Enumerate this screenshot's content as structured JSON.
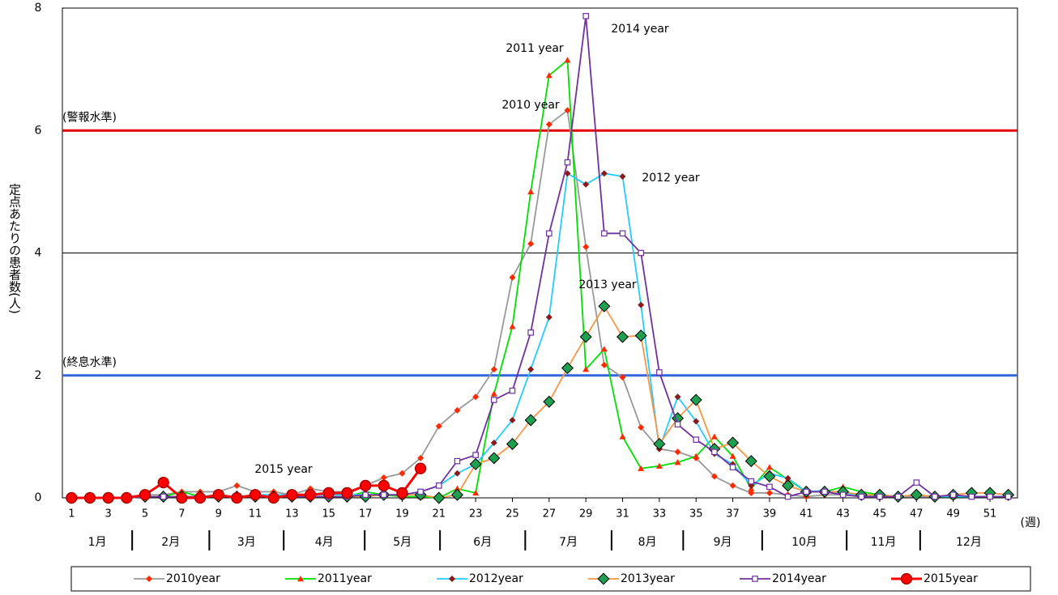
{
  "chart_data": {
    "type": "line",
    "y_label": "定点あたりの患者数(人)",
    "x_unit": "(週)",
    "x": [
      1,
      2,
      3,
      4,
      5,
      6,
      7,
      8,
      9,
      10,
      11,
      12,
      13,
      14,
      15,
      16,
      17,
      18,
      19,
      20,
      21,
      22,
      23,
      24,
      25,
      26,
      27,
      28,
      29,
      30,
      31,
      32,
      33,
      34,
      35,
      36,
      37,
      38,
      39,
      40,
      41,
      42,
      43,
      44,
      45,
      46,
      47,
      48,
      49,
      50,
      51,
      52
    ],
    "xlim": [
      0.5,
      52.5
    ],
    "xticks": [
      1,
      3,
      5,
      7,
      9,
      11,
      13,
      15,
      17,
      19,
      21,
      23,
      25,
      27,
      29,
      31,
      33,
      35,
      37,
      39,
      41,
      43,
      45,
      47,
      49,
      51
    ],
    "ylim": [
      0,
      8
    ],
    "yticks": [
      0,
      2,
      4,
      6,
      8
    ],
    "grid": true,
    "months": [
      "1月",
      "2月",
      "3月",
      "4月",
      "5月",
      "6月",
      "7月",
      "8月",
      "9月",
      "10月",
      "11月",
      "12月"
    ],
    "reference_lines": [
      {
        "value": 6,
        "label": "(警報水準)",
        "color": "#e60000"
      },
      {
        "value": 2,
        "label": "(終息水準)",
        "color": "#3366dd"
      }
    ],
    "annotations": [
      "2010 year",
      "2011 year",
      "2012 year",
      "2013 year",
      "2014 year",
      "2015 year"
    ],
    "series": [
      {
        "name": "2010year",
        "color": "#999999",
        "marker": "diamond",
        "marker_color": "#ff2a00",
        "values": [
          0,
          0,
          0,
          0,
          0.05,
          0.05,
          0.1,
          0.1,
          0.1,
          0.2,
          0.1,
          0.1,
          0.05,
          0.15,
          0.1,
          0.1,
          0.2,
          0.33,
          0.4,
          0.65,
          1.17,
          1.43,
          1.65,
          2.1,
          3.6,
          4.15,
          6.1,
          6.33,
          4.1,
          2.17,
          1.97,
          1.15,
          0.8,
          0.75,
          0.65,
          0.35,
          0.2,
          0.08,
          0.08,
          0.05,
          0.02,
          0.05,
          0.05,
          0.05,
          0.02,
          0.02,
          0.02,
          0.02,
          0.02,
          0.02,
          0.02,
          0.02
        ]
      },
      {
        "name": "2011year",
        "color": "#00e000",
        "marker": "triangle",
        "marker_color": "#ff2a00",
        "values": [
          0,
          0,
          0,
          0,
          0.02,
          0.02,
          0.1,
          0.02,
          0.02,
          0.02,
          0.02,
          0.02,
          0.02,
          0.02,
          0.02,
          0.02,
          0.1,
          0.05,
          0.02,
          0.02,
          0,
          0.15,
          0.08,
          1.7,
          2.8,
          5.0,
          6.9,
          7.15,
          2.1,
          2.43,
          1.0,
          0.48,
          0.52,
          0.58,
          0.68,
          1.0,
          0.68,
          0.15,
          0.5,
          0.3,
          0.1,
          0.1,
          0.18,
          0.1,
          0.05,
          0.02,
          0.05,
          0.02,
          0.02,
          0.02,
          0.02,
          0.02
        ]
      },
      {
        "name": "2012year",
        "color": "#22ccff",
        "marker": "diamond",
        "marker_color": "#8b1a1a",
        "values": [
          0,
          0,
          0,
          0,
          0.02,
          0.02,
          0.02,
          0.02,
          0.05,
          0.02,
          0.05,
          0.05,
          0.05,
          0.05,
          0.05,
          0.05,
          0.05,
          0.05,
          0.05,
          0.1,
          0.2,
          0.4,
          0.55,
          0.9,
          1.27,
          2.1,
          2.95,
          5.3,
          5.12,
          5.3,
          5.25,
          3.15,
          0.8,
          1.65,
          1.25,
          0.72,
          0.55,
          0.2,
          0.4,
          0.32,
          0.1,
          0.12,
          0.08,
          0.05,
          0.05,
          0.02,
          0.05,
          0.02,
          0.02,
          0.02,
          0.02,
          0.02
        ]
      },
      {
        "name": "2013year",
        "color": "#f79646",
        "marker": "diamond",
        "marker_color": "#1fa050",
        "values": [
          0,
          0,
          0,
          0,
          0.02,
          0.02,
          0.02,
          0.02,
          0.02,
          0.02,
          0.02,
          0.02,
          0.02,
          0.02,
          0.02,
          0.02,
          0.02,
          0.05,
          0.05,
          0.05,
          0,
          0.05,
          0.55,
          0.65,
          0.88,
          1.27,
          1.57,
          2.12,
          2.63,
          3.13,
          2.63,
          2.65,
          0.88,
          1.3,
          1.6,
          0.8,
          0.9,
          0.6,
          0.35,
          0.2,
          0.1,
          0.1,
          0.1,
          0.05,
          0.05,
          0.02,
          0.05,
          0.02,
          0.05,
          0.08,
          0.08,
          0.05
        ]
      },
      {
        "name": "2014year",
        "color": "#7030a0",
        "marker": "square",
        "marker_color": "#ffffff",
        "values": [
          0,
          0,
          0,
          0,
          0.02,
          0.02,
          0.02,
          0.02,
          0.02,
          0.02,
          0.02,
          0.02,
          0.02,
          0.02,
          0.02,
          0.02,
          0.05,
          0.05,
          0.05,
          0.1,
          0.2,
          0.6,
          0.7,
          1.6,
          1.75,
          2.7,
          4.32,
          5.48,
          7.87,
          4.32,
          4.32,
          4.0,
          2.05,
          1.2,
          0.95,
          0.75,
          0.5,
          0.27,
          0.18,
          0.02,
          0.1,
          0.1,
          0.05,
          0.02,
          0.02,
          0.02,
          0.25,
          0.02,
          0.05,
          0.02,
          0.02,
          0.02
        ]
      },
      {
        "name": "2015year",
        "color": "#ff0000",
        "marker": "circle",
        "marker_color": "#ff0000",
        "values": [
          0,
          0,
          0,
          0,
          0.05,
          0.25,
          0,
          0,
          0.05,
          0,
          0.05,
          0,
          0.05,
          0.05,
          0.08,
          0.08,
          0.2,
          0.2,
          0.08,
          0.48,
          null,
          null,
          null,
          null,
          null,
          null,
          null,
          null,
          null,
          null,
          null,
          null,
          null,
          null,
          null,
          null,
          null,
          null,
          null,
          null,
          null,
          null,
          null,
          null,
          null,
          null,
          null,
          null,
          null,
          null,
          null,
          null
        ]
      }
    ]
  }
}
